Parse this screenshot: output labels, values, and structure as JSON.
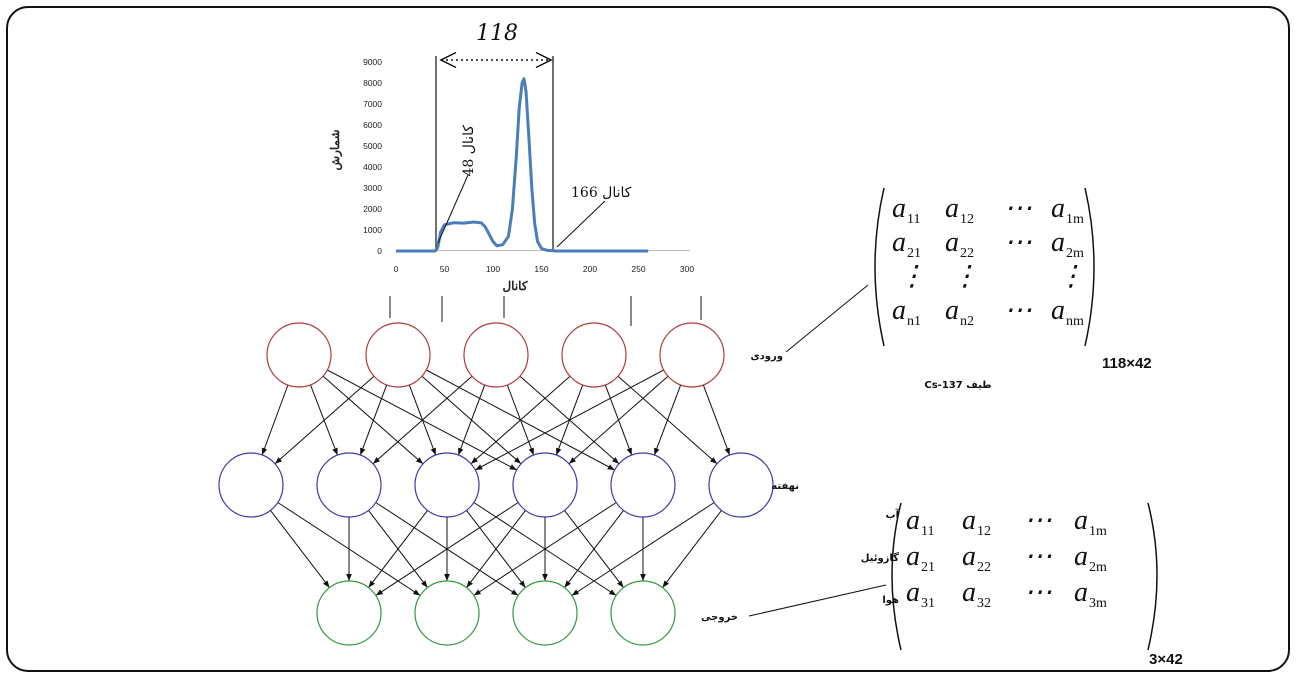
{
  "spectrum": {
    "width_label": "118",
    "channel_start_label": "کانال 48",
    "channel_end_label": "کانال 166",
    "y_axis_label": "شمارش",
    "x_axis_label": "کانال"
  },
  "chart_data": {
    "type": "line",
    "xlim": [
      0,
      300
    ],
    "ylim": [
      0,
      9000
    ],
    "x_ticks": [
      "0",
      "50",
      "100",
      "150",
      "200",
      "250",
      "300"
    ],
    "y_ticks": [
      "0",
      "1000",
      "2000",
      "3000",
      "4000",
      "5000",
      "6000",
      "7000",
      "8000",
      "9000"
    ],
    "series": [
      {
        "color": "#4a7ebb",
        "points": [
          [
            0,
            0
          ],
          [
            40,
            0
          ],
          [
            43,
            150
          ],
          [
            46,
            900
          ],
          [
            50,
            1250
          ],
          [
            60,
            1350
          ],
          [
            70,
            1330
          ],
          [
            80,
            1380
          ],
          [
            88,
            1340
          ],
          [
            92,
            1150
          ],
          [
            96,
            800
          ],
          [
            100,
            450
          ],
          [
            104,
            250
          ],
          [
            110,
            300
          ],
          [
            116,
            700
          ],
          [
            120,
            2000
          ],
          [
            124,
            4500
          ],
          [
            127,
            6800
          ],
          [
            130,
            8000
          ],
          [
            132,
            8200
          ],
          [
            134,
            7600
          ],
          [
            137,
            5400
          ],
          [
            140,
            3000
          ],
          [
            143,
            1300
          ],
          [
            146,
            450
          ],
          [
            150,
            120
          ],
          [
            156,
            30
          ],
          [
            166,
            0
          ],
          [
            200,
            0
          ],
          [
            260,
            0
          ]
        ]
      }
    ]
  },
  "network": {
    "input_label": "ورودی",
    "hidden_label": "نهفته",
    "output_label": "خروجی"
  },
  "input_matrix": {
    "caption": "طیف Cs-137",
    "dimension": "118×42",
    "rows": [
      [
        {
          "b": "a",
          "s": "11"
        },
        {
          "b": "a",
          "s": "12"
        },
        {
          "b": "⋯",
          "s": ""
        },
        {
          "b": "a",
          "s": "1m"
        }
      ],
      [
        {
          "b": "a",
          "s": "21"
        },
        {
          "b": "a",
          "s": "22"
        },
        {
          "b": "⋯",
          "s": ""
        },
        {
          "b": "a",
          "s": "2m"
        }
      ],
      [
        {
          "b": "⋮",
          "s": ""
        },
        {
          "b": "⋮",
          "s": ""
        },
        {
          "b": "",
          "s": ""
        },
        {
          "b": "⋮",
          "s": ""
        }
      ],
      [
        {
          "b": "a",
          "s": "n1"
        },
        {
          "b": "a",
          "s": "n2"
        },
        {
          "b": "⋯",
          "s": ""
        },
        {
          "b": "a",
          "s": "nm"
        }
      ]
    ]
  },
  "output_matrix": {
    "dimension": "3×42",
    "row_labels": [
      "آب",
      "گازوئیل",
      "هوا"
    ],
    "rows": [
      [
        {
          "b": "a",
          "s": "11"
        },
        {
          "b": "a",
          "s": "12"
        },
        {
          "b": "⋯",
          "s": ""
        },
        {
          "b": "a",
          "s": "1m"
        }
      ],
      [
        {
          "b": "a",
          "s": "21"
        },
        {
          "b": "a",
          "s": "22"
        },
        {
          "b": "⋯",
          "s": ""
        },
        {
          "b": "a",
          "s": "2m"
        }
      ],
      [
        {
          "b": "a",
          "s": "31"
        },
        {
          "b": "a",
          "s": "32"
        },
        {
          "b": "⋯",
          "s": ""
        },
        {
          "b": "a",
          "s": "3m"
        }
      ]
    ]
  },
  "colors": {
    "input_node": "#b03a3a",
    "hidden_node": "#3a3aa6",
    "output_node": "#2f9a3a",
    "spectrum_line": "#4a7ebb"
  }
}
